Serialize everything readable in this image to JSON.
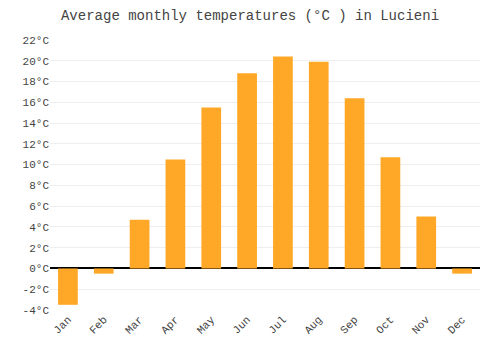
{
  "chart_data": {
    "type": "bar",
    "title": "Average monthly temperatures (°C ) in Lucieni",
    "categories": [
      "Jan",
      "Feb",
      "Mar",
      "Apr",
      "May",
      "Jun",
      "Jul",
      "Aug",
      "Sep",
      "Oct",
      "Nov",
      "Dec"
    ],
    "values": [
      -3.5,
      -0.5,
      4.7,
      10.5,
      15.5,
      18.8,
      20.4,
      19.9,
      16.4,
      10.7,
      5.0,
      -0.5
    ],
    "color": "#FFA726",
    "ylim": [
      -4,
      22
    ],
    "yticks": [
      {
        "value": -4,
        "label": "-4°C"
      },
      {
        "value": -2,
        "label": "-2°C"
      },
      {
        "value": 0,
        "label": "0°C"
      },
      {
        "value": 2,
        "label": "2°C"
      },
      {
        "value": 4,
        "label": "4°C"
      },
      {
        "value": 6,
        "label": "6°C"
      },
      {
        "value": 8,
        "label": "8°C"
      },
      {
        "value": 10,
        "label": "10°C"
      },
      {
        "value": 12,
        "label": "12°C"
      },
      {
        "value": 14,
        "label": "14°C"
      },
      {
        "value": 16,
        "label": "16°C"
      },
      {
        "value": 18,
        "label": "18°C"
      },
      {
        "value": 20,
        "label": "20°C"
      },
      {
        "value": 22,
        "label": "22°C"
      }
    ],
    "grid": true
  }
}
